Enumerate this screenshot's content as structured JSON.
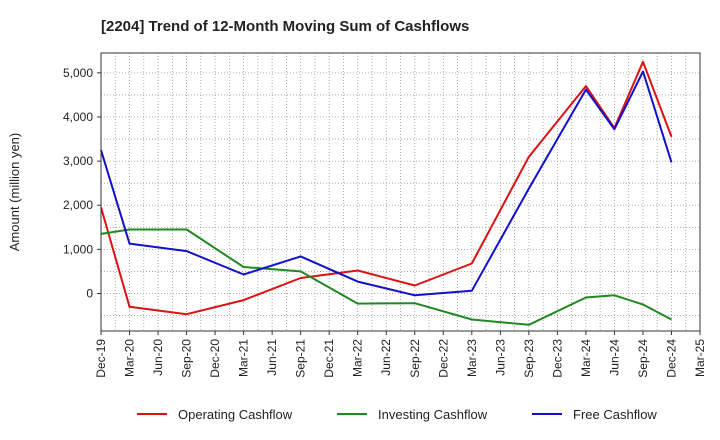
{
  "chart_data": {
    "type": "line",
    "title": "[2204]  Trend of 12-Month Moving Sum of Cashflows",
    "ylabel": "Amount (million yen)",
    "xlabel": "",
    "x": [
      "Dec-19",
      "Mar-20",
      "Jun-20",
      "Sep-20",
      "Dec-20",
      "Mar-21",
      "Jun-21",
      "Sep-21",
      "Dec-21",
      "Mar-22",
      "Jun-22",
      "Sep-22",
      "Dec-22",
      "Mar-23",
      "Jun-23",
      "Sep-23",
      "Dec-23",
      "Mar-24",
      "Jun-24",
      "Sep-24",
      "Dec-24",
      "Mar-25"
    ],
    "yticks": [
      0,
      1000,
      2000,
      3000,
      4000,
      5000
    ],
    "ytick_labels": [
      "0",
      "1,000",
      "2,000",
      "3,000",
      "4,000",
      "5,000"
    ],
    "ylim": [
      -850,
      5450
    ],
    "grid": true,
    "legend_position": "bottom",
    "series": [
      {
        "name": "Operating Cashflow",
        "color": "#dd1111",
        "points": [
          {
            "x": "Dec-19",
            "y": 1950
          },
          {
            "x": "Mar-20",
            "y": -300
          },
          {
            "x": "Sep-20",
            "y": -470
          },
          {
            "x": "Mar-21",
            "y": -150
          },
          {
            "x": "Sep-21",
            "y": 350
          },
          {
            "x": "Mar-22",
            "y": 520
          },
          {
            "x": "Sep-22",
            "y": 180
          },
          {
            "x": "Mar-23",
            "y": 680
          },
          {
            "x": "Sep-23",
            "y": 3100
          },
          {
            "x": "Mar-24",
            "y": 4700
          },
          {
            "x": "Jun-24",
            "y": 3750
          },
          {
            "x": "Sep-24",
            "y": 5250
          },
          {
            "x": "Dec-24",
            "y": 3550
          }
        ]
      },
      {
        "name": "Investing Cashflow",
        "color": "#228822",
        "points": [
          {
            "x": "Dec-19",
            "y": 1350
          },
          {
            "x": "Mar-20",
            "y": 1450
          },
          {
            "x": "Sep-20",
            "y": 1450
          },
          {
            "x": "Mar-21",
            "y": 600
          },
          {
            "x": "Sep-21",
            "y": 500
          },
          {
            "x": "Mar-22",
            "y": -230
          },
          {
            "x": "Sep-22",
            "y": -220
          },
          {
            "x": "Mar-23",
            "y": -590
          },
          {
            "x": "Sep-23",
            "y": -710
          },
          {
            "x": "Mar-24",
            "y": -90
          },
          {
            "x": "Jun-24",
            "y": -40
          },
          {
            "x": "Sep-24",
            "y": -250
          },
          {
            "x": "Dec-24",
            "y": -590
          }
        ]
      },
      {
        "name": "Free Cashflow",
        "color": "#1111cc",
        "points": [
          {
            "x": "Dec-19",
            "y": 3250
          },
          {
            "x": "Mar-20",
            "y": 1130
          },
          {
            "x": "Sep-20",
            "y": 960
          },
          {
            "x": "Mar-21",
            "y": 430
          },
          {
            "x": "Sep-21",
            "y": 840
          },
          {
            "x": "Mar-22",
            "y": 270
          },
          {
            "x": "Sep-22",
            "y": -40
          },
          {
            "x": "Mar-23",
            "y": 60
          },
          {
            "x": "Sep-23",
            "y": 2380
          },
          {
            "x": "Mar-24",
            "y": 4620
          },
          {
            "x": "Jun-24",
            "y": 3720
          },
          {
            "x": "Sep-24",
            "y": 5030
          },
          {
            "x": "Dec-24",
            "y": 2970
          }
        ]
      }
    ]
  }
}
